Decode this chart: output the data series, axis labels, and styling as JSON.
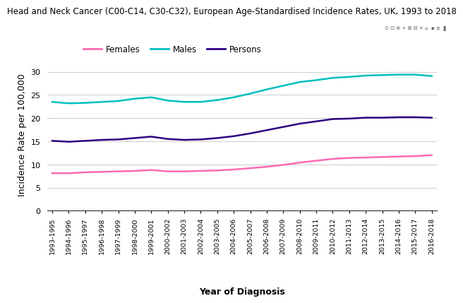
{
  "title": "Head and Neck Cancer (C00-C14, C30-C32), European Age-Standardised Incidence Rates, UK, 1993 to 2018",
  "xlabel": "Year of Diagnosis",
  "ylabel": "Incidence Rate per 100,000",
  "x_labels": [
    "1993-1995",
    "1994-1996",
    "1995-1997",
    "1996-1998",
    "1997-1999",
    "1998-2000",
    "1999-2001",
    "2000-2002",
    "2001-2003",
    "2002-2004",
    "2003-2005",
    "2004-2006",
    "2005-2007",
    "2006-2008",
    "2007-2009",
    "2008-2010",
    "2009-2011",
    "2010-2012",
    "2011-2013",
    "2012-2014",
    "2013-2015",
    "2014-2016",
    "2015-2017",
    "2016-2018"
  ],
  "females": [
    8.1,
    8.1,
    8.3,
    8.4,
    8.5,
    8.6,
    8.8,
    8.5,
    8.5,
    8.6,
    8.7,
    8.9,
    9.2,
    9.5,
    9.9,
    10.4,
    10.8,
    11.2,
    11.4,
    11.5,
    11.6,
    11.7,
    11.8,
    12.0
  ],
  "males": [
    23.5,
    23.2,
    23.3,
    23.5,
    23.7,
    24.2,
    24.5,
    23.8,
    23.5,
    23.5,
    23.9,
    24.5,
    25.3,
    26.2,
    27.0,
    27.8,
    28.2,
    28.7,
    28.9,
    29.2,
    29.3,
    29.4,
    29.4,
    29.1
  ],
  "persons": [
    15.1,
    14.9,
    15.1,
    15.3,
    15.4,
    15.7,
    16.0,
    15.5,
    15.3,
    15.4,
    15.7,
    16.1,
    16.7,
    17.4,
    18.1,
    18.8,
    19.3,
    19.8,
    19.9,
    20.1,
    20.1,
    20.2,
    20.2,
    20.1
  ],
  "females_color": "#FF69B4",
  "males_color": "#00BFBF",
  "persons_color": "#2E0080",
  "ylim": [
    0,
    33
  ],
  "yticks": [
    0,
    5,
    10,
    15,
    20,
    25,
    30
  ],
  "background_color": "#ffffff",
  "grid_color": "#d0d0d0",
  "title_fontsize": 8.5,
  "axis_label_fontsize": 9,
  "tick_fontsize": 8,
  "legend_labels": [
    "Females",
    "Males",
    "Persons"
  ]
}
